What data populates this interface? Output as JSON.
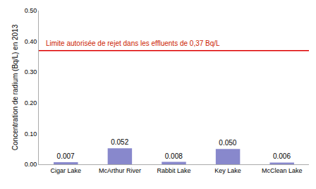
{
  "chart_data": {
    "type": "bar",
    "categories": [
      "Cigar Lake",
      "McArthur River",
      "Rabbit Lake",
      "Key Lake",
      "McClean Lake"
    ],
    "values": [
      0.007,
      0.052,
      0.008,
      0.05,
      0.006
    ],
    "value_labels": [
      "0.007",
      "0.052",
      "0.008",
      "0.050",
      "0.006"
    ],
    "data_labels": true,
    "color": "#8888cc",
    "ylabel": "Concentration de radium (Bq/L) en 2013",
    "ylim": [
      0.0,
      0.5
    ],
    "yticks": [
      {
        "value": 0.0,
        "label": "0.00"
      },
      {
        "value": 0.1,
        "label": "0.10"
      },
      {
        "value": 0.2,
        "label": "0.20"
      },
      {
        "value": 0.3,
        "label": "0.30"
      },
      {
        "value": 0.4,
        "label": "0.40"
      },
      {
        "value": 0.5,
        "label": "0.50"
      }
    ],
    "grid": false,
    "limit": {
      "value": 0.37,
      "label": "Limite autorisée de rejet dans les effluents de 0,37 Bq/L",
      "color": "#dd0000",
      "label_color": "#cc2200"
    }
  }
}
